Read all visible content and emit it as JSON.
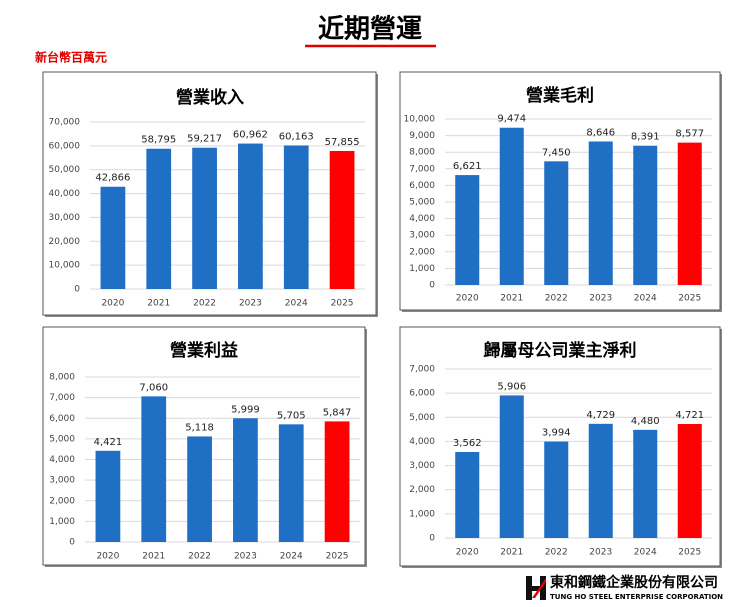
{
  "title": "近期營運",
  "unit": "新台幣百萬元",
  "footer": {
    "company": "東和鋼鐵企業股份有限公司",
    "english": "TUNG HO STEEL ENTERPRISE CORPORATION"
  },
  "chart_data": [
    {
      "type": "bar",
      "title": "營業收入",
      "categories": [
        "2020",
        "2021",
        "2022",
        "2023",
        "2024",
        "2025"
      ],
      "values": [
        42866,
        58795,
        59217,
        60962,
        60163,
        57855
      ],
      "value_labels": [
        "42,866",
        "58,795",
        "59,217",
        "60,962",
        "60,163",
        "57,855"
      ],
      "colors": [
        "#1f6fc5",
        "#1f6fc5",
        "#1f6fc5",
        "#1f6fc5",
        "#1f6fc5",
        "#ff0000"
      ],
      "ylim": [
        0,
        70000
      ],
      "yticks": [
        0,
        {
          "value": 10000,
          "label": "10,000"
        },
        {
          "value": 20000,
          "label": "20,000"
        },
        {
          "value": 30000,
          "label": "30,000"
        },
        {
          "value": 40000,
          "label": "40,000"
        },
        {
          "value": 50000,
          "label": "50,000"
        },
        {
          "value": 60000,
          "label": "60,000"
        },
        {
          "value": 70000,
          "label": "70,000"
        }
      ],
      "grid": true
    },
    {
      "type": "bar",
      "title": "營業毛利",
      "categories": [
        "2020",
        "2021",
        "2022",
        "2023",
        "2024",
        "2025"
      ],
      "values": [
        6621,
        9474,
        7450,
        8646,
        8391,
        8577
      ],
      "value_labels": [
        "6,621",
        "9,474",
        "7,450",
        "8,646",
        "8,391",
        "8,577"
      ],
      "colors": [
        "#1f6fc5",
        "#1f6fc5",
        "#1f6fc5",
        "#1f6fc5",
        "#1f6fc5",
        "#ff0000"
      ],
      "ylim": [
        0,
        10000
      ],
      "yticks": [
        0,
        {
          "value": 1000,
          "label": "1,000"
        },
        {
          "value": 2000,
          "label": "2,000"
        },
        {
          "value": 3000,
          "label": "3,000"
        },
        {
          "value": 4000,
          "label": "4,000"
        },
        {
          "value": 5000,
          "label": "5,000"
        },
        {
          "value": 6000,
          "label": "6,000"
        },
        {
          "value": 7000,
          "label": "7,000"
        },
        {
          "value": 8000,
          "label": "8,000"
        },
        {
          "value": 9000,
          "label": "9,000"
        },
        {
          "value": 10000,
          "label": "10,000"
        }
      ],
      "grid": true
    },
    {
      "type": "bar",
      "title": "營業利益",
      "categories": [
        "2020",
        "2021",
        "2022",
        "2023",
        "2024",
        "2025"
      ],
      "values": [
        4421,
        7060,
        5118,
        5999,
        5705,
        5847
      ],
      "value_labels": [
        "4,421",
        "7,060",
        "5,118",
        "5,999",
        "5,705",
        "5,847"
      ],
      "colors": [
        "#1f6fc5",
        "#1f6fc5",
        "#1f6fc5",
        "#1f6fc5",
        "#1f6fc5",
        "#ff0000"
      ],
      "ylim": [
        0,
        8000
      ],
      "yticks": [
        0,
        {
          "value": 1000,
          "label": "1,000"
        },
        {
          "value": 2000,
          "label": "2,000"
        },
        {
          "value": 3000,
          "label": "3,000"
        },
        {
          "value": 4000,
          "label": "4,000"
        },
        {
          "value": 5000,
          "label": "5,000"
        },
        {
          "value": 6000,
          "label": "6,000"
        },
        {
          "value": 7000,
          "label": "7,000"
        },
        {
          "value": 8000,
          "label": "8,000"
        }
      ],
      "grid": true
    },
    {
      "type": "bar",
      "title": "歸屬母公司業主淨利",
      "categories": [
        "2020",
        "2021",
        "2022",
        "2023",
        "2024",
        "2025"
      ],
      "values": [
        3562,
        5906,
        3994,
        4729,
        4480,
        4721
      ],
      "value_labels": [
        "3,562",
        "5,906",
        "3,994",
        "4,729",
        "4,480",
        "4,721"
      ],
      "colors": [
        "#1f6fc5",
        "#1f6fc5",
        "#1f6fc5",
        "#1f6fc5",
        "#1f6fc5",
        "#ff0000"
      ],
      "ylim": [
        0,
        7000
      ],
      "yticks": [
        0,
        {
          "value": 1000,
          "label": "1,000"
        },
        {
          "value": 2000,
          "label": "2,000"
        },
        {
          "value": 3000,
          "label": "3,000"
        },
        {
          "value": 4000,
          "label": "4,000"
        },
        {
          "value": 5000,
          "label": "5,000"
        },
        {
          "value": 6000,
          "label": "6,000"
        },
        {
          "value": 7000,
          "label": "7,000"
        }
      ],
      "grid": true
    }
  ]
}
